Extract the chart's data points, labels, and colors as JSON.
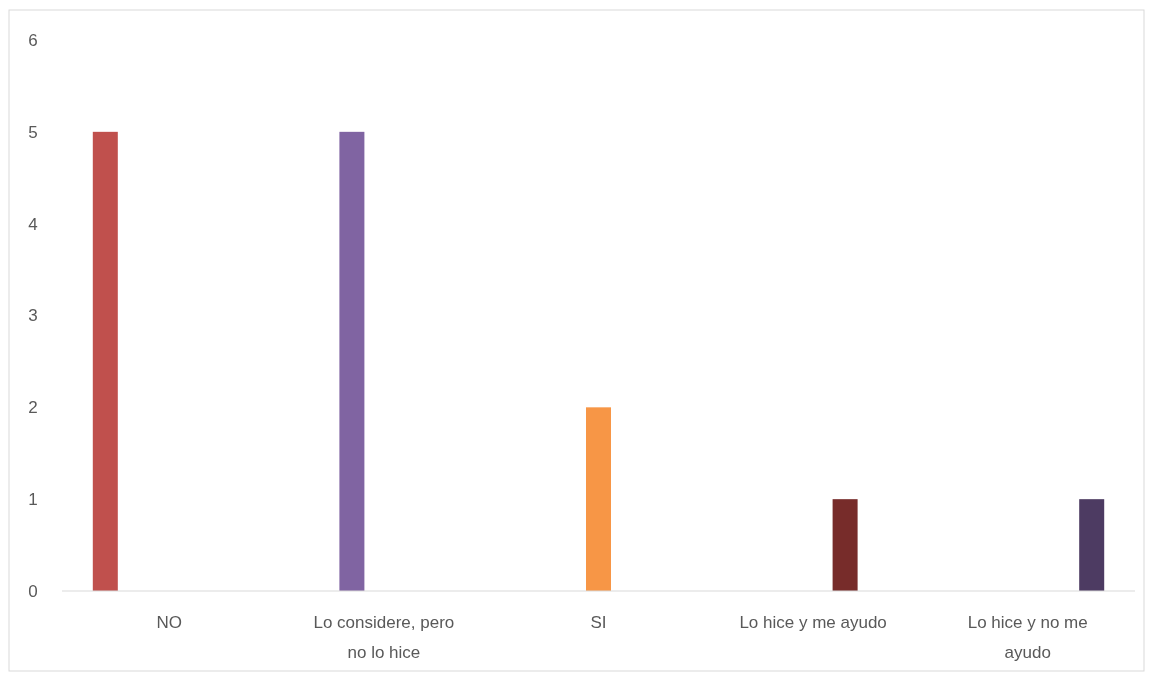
{
  "chart_data": {
    "type": "bar",
    "categories": [
      "NO",
      "Lo considere, pero no lo hice",
      "SI",
      "Lo hice y me ayudo",
      "Lo hice y no me ayudo"
    ],
    "series": [
      {
        "color": "#c0504d",
        "values": [
          5,
          0,
          0,
          0,
          0
        ]
      },
      {
        "color": "#8064a2",
        "values": [
          0,
          5,
          0,
          0,
          0
        ]
      },
      {
        "color": "#f79646",
        "values": [
          0,
          0,
          2,
          0,
          0
        ]
      },
      {
        "color": "#772c2a",
        "values": [
          0,
          0,
          0,
          1,
          0
        ]
      },
      {
        "color": "#4d3b62",
        "values": [
          0,
          0,
          0,
          0,
          1
        ]
      }
    ],
    "ylim": [
      0,
      6
    ],
    "yticks": [
      0,
      1,
      2,
      3,
      4,
      5,
      6
    ],
    "grid": false
  }
}
